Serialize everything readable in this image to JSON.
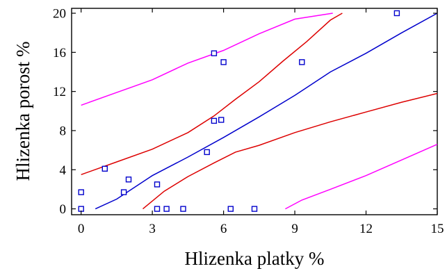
{
  "chart_data": {
    "type": "scatter",
    "title": "",
    "xlabel": "Hlizenka platky %",
    "ylabel": "Hlizenka porost %",
    "xlim": [
      -0.4,
      15
    ],
    "ylim": [
      -0.6,
      20.5
    ],
    "xticks": [
      0,
      3,
      6,
      9,
      12,
      15
    ],
    "xtick_labels": [
      "0",
      "3",
      "6",
      "9",
      "12",
      "15"
    ],
    "yticks": [
      0,
      4,
      8,
      12,
      16,
      20
    ],
    "ytick_labels": [
      "0",
      "4",
      "8",
      "12",
      "16",
      "20"
    ],
    "grid": false,
    "legend": "none",
    "points": {
      "color": "#0000cc",
      "marker": "open-square",
      "x": [
        0,
        0,
        1.0,
        1.8,
        2.0,
        3.2,
        3.2,
        3.6,
        4.3,
        5.3,
        5.6,
        5.6,
        5.9,
        6.0,
        6.3,
        7.3,
        9.3,
        13.3
      ],
      "y": [
        0,
        1.7,
        4.1,
        1.7,
        3.0,
        2.5,
        0,
        0,
        0,
        5.8,
        9.0,
        15.9,
        9.1,
        15.0,
        0,
        0,
        15.0,
        20.0
      ]
    },
    "series": [
      {
        "role": "fit",
        "color": "#0000cc",
        "x": [
          0.6,
          1.5,
          3.0,
          4.5,
          6.0,
          7.5,
          9.0,
          10.5,
          12.0,
          13.5,
          15.0
        ],
        "y": [
          0.0,
          1.0,
          3.4,
          5.3,
          7.3,
          9.4,
          11.6,
          14.0,
          15.9,
          18.0,
          20.0
        ]
      },
      {
        "role": "confidence-upper",
        "color": "#dd0000",
        "x": [
          0.0,
          1.5,
          3.0,
          4.5,
          5.6,
          6.5,
          7.5,
          8.5,
          9.5,
          10.5,
          11.0
        ],
        "y": [
          3.5,
          4.8,
          6.1,
          7.8,
          9.5,
          11.2,
          13.0,
          15.1,
          17.1,
          19.3,
          20.0
        ]
      },
      {
        "role": "confidence-lower",
        "color": "#dd0000",
        "x": [
          2.6,
          3.5,
          4.5,
          5.6,
          6.5,
          7.5,
          9.0,
          10.5,
          12.0,
          13.5,
          15.0
        ],
        "y": [
          0.0,
          1.8,
          3.3,
          4.7,
          5.8,
          6.5,
          7.8,
          8.9,
          9.9,
          10.9,
          11.8
        ]
      },
      {
        "role": "prediction-upper",
        "color": "#ff00ff",
        "x": [
          0.0,
          1.5,
          3.0,
          4.5,
          6.0,
          7.5,
          9.0,
          10.6
        ],
        "y": [
          10.6,
          11.9,
          13.2,
          14.9,
          16.2,
          17.9,
          19.4,
          20.0
        ]
      },
      {
        "role": "prediction-lower",
        "color": "#ff00ff",
        "x": [
          8.6,
          9.3,
          10.5,
          12.0,
          13.5,
          15.0
        ],
        "y": [
          0.0,
          0.9,
          2.0,
          3.4,
          5.0,
          6.6
        ]
      }
    ]
  }
}
